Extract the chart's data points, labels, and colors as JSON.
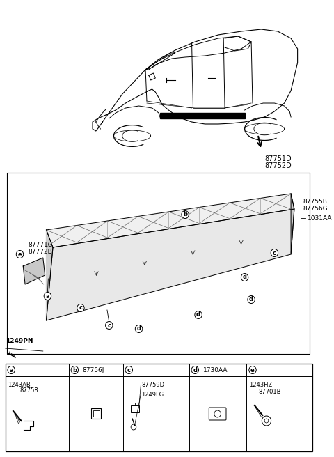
{
  "bg_color": "#ffffff",
  "car_label_1": "87751D",
  "car_label_2": "87752D",
  "part_label_e_1": "87771C",
  "part_label_e_2": "87772B",
  "part_label_b_top": "87755B",
  "part_label_b_top2": "87756G",
  "part_label_b_top3": "1031AA",
  "part_label_left": "1249PN",
  "legend_a_code1": "1243AB",
  "legend_a_code2": "87758",
  "legend_b_code": "87756J",
  "legend_c_code1": "87759D",
  "legend_c_code2": "1249LG",
  "legend_d_code": "1730AA",
  "legend_e_code1": "1243HZ",
  "legend_e_code2": "87701B",
  "line_color": "#000000",
  "text_color": "#000000"
}
